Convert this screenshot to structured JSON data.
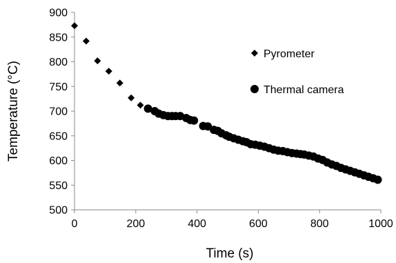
{
  "chart_data": {
    "type": "scatter",
    "xlabel": "Time (s)",
    "ylabel": "Temperature (°C)",
    "xlim": [
      0,
      1000
    ],
    "ylim": [
      500,
      900
    ],
    "xticks": [
      0,
      200,
      400,
      600,
      800,
      1000
    ],
    "yticks": [
      500,
      550,
      600,
      650,
      700,
      750,
      800,
      850,
      900
    ],
    "grid": false,
    "legend_position": "right",
    "series": [
      {
        "name": "Pyrometer",
        "marker": "diamond",
        "color": "#000000",
        "x": [
          0,
          38,
          75,
          112,
          148,
          185,
          215
        ],
        "y": [
          873,
          842,
          802,
          781,
          757,
          727,
          712
        ]
      },
      {
        "name": "Thermal camera",
        "marker": "circle",
        "color": "#000000",
        "x": [
          240,
          262,
          275,
          290,
          305,
          318,
          330,
          345,
          365,
          378,
          390,
          420,
          435,
          455,
          468,
          480,
          495,
          505,
          520,
          535,
          550,
          562,
          575,
          590,
          605,
          620,
          635,
          650,
          665,
          680,
          695,
          710,
          725,
          738,
          750,
          765,
          780,
          795,
          810,
          825,
          840,
          855,
          870,
          885,
          900,
          915,
          930,
          945,
          960,
          975,
          990
        ],
        "y": [
          705,
          700,
          695,
          692,
          690,
          690,
          690,
          690,
          686,
          682,
          681,
          670,
          669,
          662,
          660,
          655,
          651,
          648,
          645,
          642,
          639,
          637,
          633,
          632,
          630,
          628,
          625,
          622,
          620,
          619,
          617,
          615,
          614,
          613,
          612,
          610,
          608,
          604,
          601,
          596,
          592,
          589,
          585,
          582,
          579,
          576,
          573,
          570,
          567,
          564,
          561
        ]
      }
    ]
  }
}
